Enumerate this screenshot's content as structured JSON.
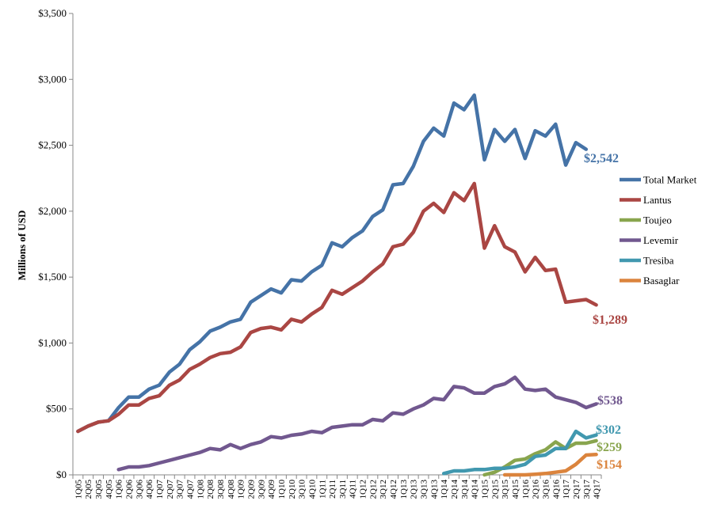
{
  "chart_data": {
    "type": "line",
    "ylabel": "Millions of USD",
    "ylim": [
      0,
      3500
    ],
    "yticks": [
      0,
      500,
      1000,
      1500,
      2000,
      2500,
      3000,
      3500
    ],
    "ytick_labels": [
      "$0",
      "$500",
      "$1,000",
      "$1,500",
      "$2,000",
      "$2,500",
      "$3,000",
      "$3,500"
    ],
    "grid": false,
    "legend_position": "right",
    "categories": [
      "1Q05",
      "2Q05",
      "3Q05",
      "4Q05",
      "1Q06",
      "2Q06",
      "3Q06",
      "4Q06",
      "1Q07",
      "2Q07",
      "3Q07",
      "4Q07",
      "1Q08",
      "2Q08",
      "3Q08",
      "4Q08",
      "1Q09",
      "2Q09",
      "3Q09",
      "4Q09",
      "1Q10",
      "2Q10",
      "3Q10",
      "4Q10",
      "1Q11",
      "2Q11",
      "3Q11",
      "4Q11",
      "1Q12",
      "2Q12",
      "3Q12",
      "4Q12",
      "1Q13",
      "2Q13",
      "3Q13",
      "4Q13",
      "1Q14",
      "2Q14",
      "3Q14",
      "4Q14",
      "1Q15",
      "2Q15",
      "3Q15",
      "4Q15",
      "1Q16",
      "2Q16",
      "3Q16",
      "4Q16",
      "1Q17",
      "2Q17",
      "3Q17",
      "4Q17"
    ],
    "series": [
      {
        "name": "Total Market",
        "color": "#4573a7",
        "end_label": "$2,542",
        "values": [
          330,
          370,
          400,
          410,
          510,
          590,
          590,
          650,
          680,
          780,
          840,
          950,
          1010,
          1090,
          1120,
          1160,
          1180,
          1310,
          1360,
          1410,
          1380,
          1480,
          1470,
          1540,
          1590,
          1760,
          1730,
          1800,
          1850,
          1960,
          2010,
          2200,
          2210,
          2340,
          2530,
          2630,
          2570,
          2820,
          2770,
          2880,
          2390,
          2620,
          2530,
          2620,
          2400,
          2610,
          2570,
          2660,
          2350,
          2520,
          2470,
          null
        ]
      },
      {
        "name": "Lantus",
        "color": "#aa4643",
        "end_label": "$1,289",
        "values": [
          330,
          370,
          400,
          410,
          460,
          530,
          530,
          580,
          600,
          680,
          720,
          800,
          840,
          890,
          920,
          930,
          970,
          1080,
          1110,
          1120,
          1100,
          1180,
          1160,
          1220,
          1270,
          1400,
          1370,
          1420,
          1470,
          1540,
          1600,
          1730,
          1750,
          1840,
          2000,
          2060,
          1990,
          2140,
          2080,
          2210,
          1720,
          1890,
          1730,
          1690,
          1540,
          1650,
          1550,
          1560,
          1310,
          1320,
          1330,
          1289
        ]
      },
      {
        "name": "Toujeo",
        "color": "#89a54e",
        "end_label": "$259",
        "values": [
          null,
          null,
          null,
          null,
          null,
          null,
          null,
          null,
          null,
          null,
          null,
          null,
          null,
          null,
          null,
          null,
          null,
          null,
          null,
          null,
          null,
          null,
          null,
          null,
          null,
          null,
          null,
          null,
          null,
          null,
          null,
          null,
          null,
          null,
          null,
          null,
          null,
          null,
          null,
          null,
          0,
          20,
          60,
          110,
          120,
          160,
          190,
          250,
          200,
          240,
          240,
          259
        ]
      },
      {
        "name": "Levemir",
        "color": "#71588f",
        "end_label": "$538",
        "values": [
          null,
          null,
          null,
          null,
          40,
          60,
          60,
          70,
          90,
          110,
          130,
          150,
          170,
          200,
          190,
          230,
          200,
          230,
          250,
          290,
          280,
          300,
          310,
          330,
          320,
          360,
          370,
          380,
          380,
          420,
          410,
          470,
          460,
          500,
          530,
          580,
          570,
          670,
          660,
          620,
          620,
          670,
          690,
          740,
          650,
          640,
          650,
          590,
          570,
          550,
          510,
          538
        ]
      },
      {
        "name": "Tresiba",
        "color": "#4198af",
        "end_label": "$302",
        "values": [
          null,
          null,
          null,
          null,
          null,
          null,
          null,
          null,
          null,
          null,
          null,
          null,
          null,
          null,
          null,
          null,
          null,
          null,
          null,
          null,
          null,
          null,
          null,
          null,
          null,
          null,
          null,
          null,
          null,
          null,
          null,
          null,
          null,
          null,
          null,
          null,
          10,
          30,
          30,
          40,
          40,
          50,
          50,
          60,
          80,
          140,
          150,
          200,
          200,
          330,
          280,
          302
        ]
      },
      {
        "name": "Basaglar",
        "color": "#db843d",
        "end_label": "$154",
        "values": [
          null,
          null,
          null,
          null,
          null,
          null,
          null,
          null,
          null,
          null,
          null,
          null,
          null,
          null,
          null,
          null,
          null,
          null,
          null,
          null,
          null,
          null,
          null,
          null,
          null,
          null,
          null,
          null,
          null,
          null,
          null,
          null,
          null,
          null,
          null,
          null,
          null,
          null,
          null,
          null,
          null,
          null,
          0,
          0,
          0,
          5,
          10,
          20,
          30,
          80,
          150,
          154
        ]
      }
    ]
  }
}
